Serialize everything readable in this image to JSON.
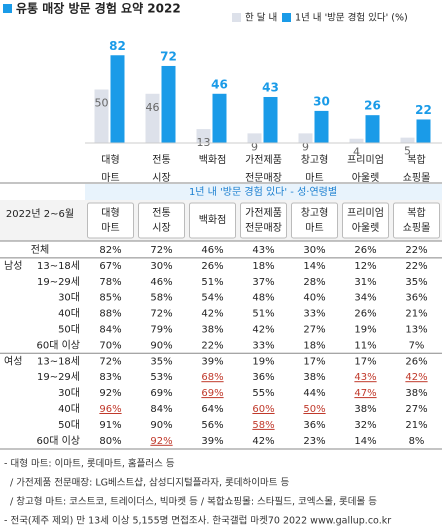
{
  "chart_data": {
    "type": "bar",
    "title": "유통 매장 방문 경험 요약 2022",
    "categories": [
      [
        "대형",
        "마트"
      ],
      [
        "전통",
        "시장"
      ],
      [
        "백화점"
      ],
      [
        "가전제품",
        "전문매장"
      ],
      [
        "창고형",
        "마트"
      ],
      [
        "프리미엄",
        "아울렛"
      ],
      [
        "복합",
        "쇼핑몰"
      ]
    ],
    "series": [
      {
        "name": "한 달 내",
        "color": "#dde1ea",
        "values": [
          50,
          46,
          13,
          9,
          9,
          4,
          5
        ]
      },
      {
        "name": "1년 내 '방문 경험 있다' (%)",
        "color": "#1a9be8",
        "values": [
          82,
          72,
          46,
          43,
          30,
          26,
          22
        ]
      }
    ],
    "ylim": [
      0,
      100
    ]
  },
  "table": {
    "title": "1년 내 '방문 경험 있다' - 성·연령별",
    "corner": "2022년 2~6월",
    "columns": [
      [
        "대형",
        "마트"
      ],
      [
        "전통",
        "시장"
      ],
      [
        "백화점"
      ],
      [
        "가전제품",
        "전문매장"
      ],
      [
        "창고형",
        "마트"
      ],
      [
        "프리미엄",
        "아울렛"
      ],
      [
        "복합",
        "쇼핑몰"
      ]
    ],
    "rows": [
      {
        "label": "전체",
        "cells": [
          "82%",
          "72%",
          "46%",
          "43%",
          "30%",
          "26%",
          "22%"
        ],
        "underlined": []
      },
      {
        "group": "남성",
        "label": "13~18세",
        "cells": [
          "67%",
          "30%",
          "26%",
          "18%",
          "14%",
          "12%",
          "22%"
        ],
        "underlined": []
      },
      {
        "label": "19~29세",
        "cells": [
          "78%",
          "46%",
          "51%",
          "37%",
          "28%",
          "31%",
          "35%"
        ],
        "underlined": []
      },
      {
        "label": "30대",
        "cells": [
          "85%",
          "58%",
          "54%",
          "48%",
          "40%",
          "34%",
          "36%"
        ],
        "underlined": []
      },
      {
        "label": "40대",
        "cells": [
          "88%",
          "72%",
          "42%",
          "51%",
          "33%",
          "26%",
          "21%"
        ],
        "underlined": []
      },
      {
        "label": "50대",
        "cells": [
          "84%",
          "79%",
          "38%",
          "42%",
          "27%",
          "19%",
          "13%"
        ],
        "underlined": []
      },
      {
        "label": "60대 이상",
        "cells": [
          "70%",
          "90%",
          "22%",
          "33%",
          "18%",
          "11%",
          "7%"
        ],
        "underlined": []
      },
      {
        "group": "여성",
        "label": "13~18세",
        "cells": [
          "72%",
          "35%",
          "39%",
          "19%",
          "17%",
          "17%",
          "26%"
        ],
        "underlined": []
      },
      {
        "label": "19~29세",
        "cells": [
          "83%",
          "53%",
          "68%",
          "36%",
          "38%",
          "43%",
          "42%"
        ],
        "underlined": [
          2,
          5,
          6
        ]
      },
      {
        "label": "30대",
        "cells": [
          "92%",
          "69%",
          "69%",
          "55%",
          "44%",
          "47%",
          "38%"
        ],
        "underlined": [
          2,
          5
        ]
      },
      {
        "label": "40대",
        "cells": [
          "96%",
          "84%",
          "64%",
          "60%",
          "50%",
          "38%",
          "27%"
        ],
        "underlined": [
          0,
          3,
          4
        ]
      },
      {
        "label": "50대",
        "cells": [
          "91%",
          "90%",
          "56%",
          "58%",
          "36%",
          "32%",
          "21%"
        ],
        "underlined": [
          3
        ]
      },
      {
        "label": "60대 이상",
        "cells": [
          "80%",
          "92%",
          "39%",
          "42%",
          "23%",
          "14%",
          "8%"
        ],
        "underlined": [
          1
        ]
      }
    ]
  },
  "notes": [
    "- 대형 마트: 이마트, 롯데마트, 홈플러스 등",
    "/ 가전제품 전문매장: LG베스트샵, 삼성디지털플라자, 롯데하이마트 등",
    "/ 창고형 마트: 코스트코, 트레이더스, 빅마켓 등 / 복합쇼핑몰: 스타필드, 코엑스몰, 롯데몰 등",
    "- 전국(제주 제외) 만 13세 이상 5,155명 면접조사. 한국갤럽 마켓70 2022 www.gallup.co.kr"
  ]
}
